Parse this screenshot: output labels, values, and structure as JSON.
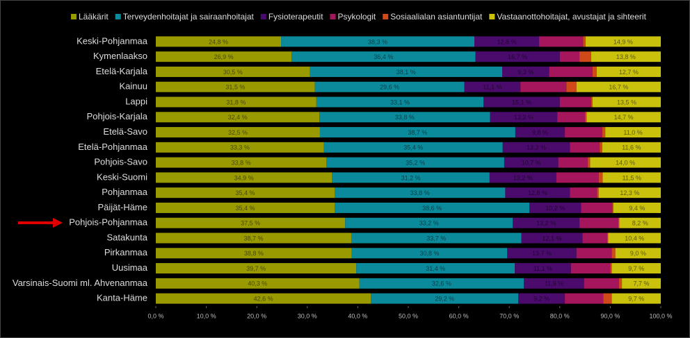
{
  "chart_data": {
    "type": "stacked-barh",
    "categories": [
      "Keski-Pohjanmaa",
      "Kymenlaakso",
      "Etelä-Karjala",
      "Kainuu",
      "Lappi",
      "Pohjois-Karjala",
      "Etelä-Savo",
      "Etelä-Pohjanmaa",
      "Pohjois-Savo",
      "Keski-Suomi",
      "Pohjanmaa",
      "Päijät-Häme",
      "Pohjois-Pohjanmaa",
      "Satakunta",
      "Pirkanmaa",
      "Uusimaa",
      "Varsinais-Suomi ml. Ahvenanmaa",
      "Kanta-Häme"
    ],
    "series": [
      {
        "name": "Lääkärit",
        "color": "#999a00",
        "values": [
          24.8,
          26.9,
          30.5,
          31.5,
          31.8,
          32.4,
          32.5,
          33.3,
          33.8,
          34.9,
          35.4,
          35.4,
          37.5,
          38.7,
          38.8,
          39.7,
          40.3,
          42.6
        ],
        "value_labels": [
          "24,8 %",
          "26,9 %",
          "30,5 %",
          "31,5 %",
          "31,8 %",
          "32,4 %",
          "32,5 %",
          "33,3 %",
          "33,8 %",
          "34,9 %",
          "35,4 %",
          "35,4 %",
          "37,5 %",
          "38,7 %",
          "38,8 %",
          "39,7 %",
          "40,3 %",
          "42,6 %"
        ]
      },
      {
        "name": "Terveydenhoitajat ja sairaanhoitajat",
        "color": "#0b8a9c",
        "values": [
          38.3,
          36.4,
          38.1,
          29.6,
          33.1,
          33.8,
          38.7,
          35.4,
          35.2,
          31.2,
          33.8,
          38.6,
          33.2,
          33.7,
          30.8,
          31.4,
          32.6,
          29.2
        ],
        "value_labels": [
          "38,3 %",
          "36,4 %",
          "38,1 %",
          "29,6 %",
          "33,1 %",
          "33,8 %",
          "38,7 %",
          "35,4 %",
          "35,2 %",
          "31,2 %",
          "33,8 %",
          "38,6 %",
          "33,2 %",
          "33,7 %",
          "30,8 %",
          "31,4 %",
          "32,6 %",
          "29,2 %"
        ]
      },
      {
        "name": "Fysioterapeutit",
        "color": "#4a0b6c",
        "values": [
          12.8,
          16.7,
          9.3,
          11.1,
          15.1,
          13.3,
          9.8,
          13.3,
          10.7,
          13.2,
          12.8,
          10.2,
          13.2,
          12.1,
          13.7,
          11.1,
          11.9,
          9.2
        ],
        "value_labels": [
          "12,8 %",
          "16,7 %",
          "9,3 %",
          "11,1 %",
          "15,1 %",
          "13,3 %",
          "9,8 %",
          "13,3 %",
          "10,7 %",
          "13,2 %",
          "12,8 %",
          "10,2 %",
          "13,2 %",
          "12,1 %",
          "13,7 %",
          "11,1 %",
          "11,9 %",
          "9,2 %"
        ]
      },
      {
        "name": "Psykologit",
        "color": "#a5165c",
        "values": [
          8.7,
          3.9,
          8.6,
          9.1,
          6.2,
          5.5,
          7.4,
          5.9,
          5.8,
          8.4,
          5.4,
          6.2,
          7.7,
          4.9,
          7.0,
          7.8,
          6.9,
          7.6
        ]
      },
      {
        "name": "Sosiaalialan asiantuntijat",
        "color": "#cf4a18",
        "values": [
          0.5,
          2.3,
          0.8,
          2.0,
          0.3,
          0.3,
          0.6,
          0.5,
          0.5,
          0.8,
          0.3,
          0.2,
          0.2,
          0.2,
          0.7,
          0.3,
          0.6,
          1.7
        ]
      },
      {
        "name": "Vastaanottohoitajat, avustajat ja sihteerit",
        "color": "#c9c10c",
        "values": [
          14.9,
          13.8,
          12.7,
          16.7,
          13.5,
          14.7,
          11.0,
          11.6,
          14.0,
          11.5,
          12.3,
          9.4,
          8.2,
          10.4,
          9.0,
          9.7,
          7.7,
          9.7
        ],
        "value_labels": [
          "14,9 %",
          "13,8 %",
          "12,7 %",
          "16,7 %",
          "13,5 %",
          "14,7 %",
          "11,0 %",
          "11,6 %",
          "14,0 %",
          "11,5 %",
          "12,3 %",
          "9,4 %",
          "8,2 %",
          "10,4 %",
          "9,0 %",
          "9,7 %",
          "7,7 %",
          "9,7 %"
        ]
      }
    ],
    "xlim": [
      0,
      100
    ],
    "xticks": [
      {
        "value": 0,
        "label": "0,0 %"
      },
      {
        "value": 10,
        "label": "10,0 %"
      },
      {
        "value": 20,
        "label": "20,0 %"
      },
      {
        "value": 30,
        "label": "30,0 %"
      },
      {
        "value": 40,
        "label": "40,0 %"
      },
      {
        "value": 50,
        "label": "50,0 %"
      },
      {
        "value": 60,
        "label": "60,0 %"
      },
      {
        "value": 70,
        "label": "70,0 %"
      },
      {
        "value": 80,
        "label": "80,0 %"
      },
      {
        "value": 90,
        "label": "90,0 %"
      },
      {
        "value": 100,
        "label": "100,0 %"
      }
    ],
    "legend": "top"
  }
}
